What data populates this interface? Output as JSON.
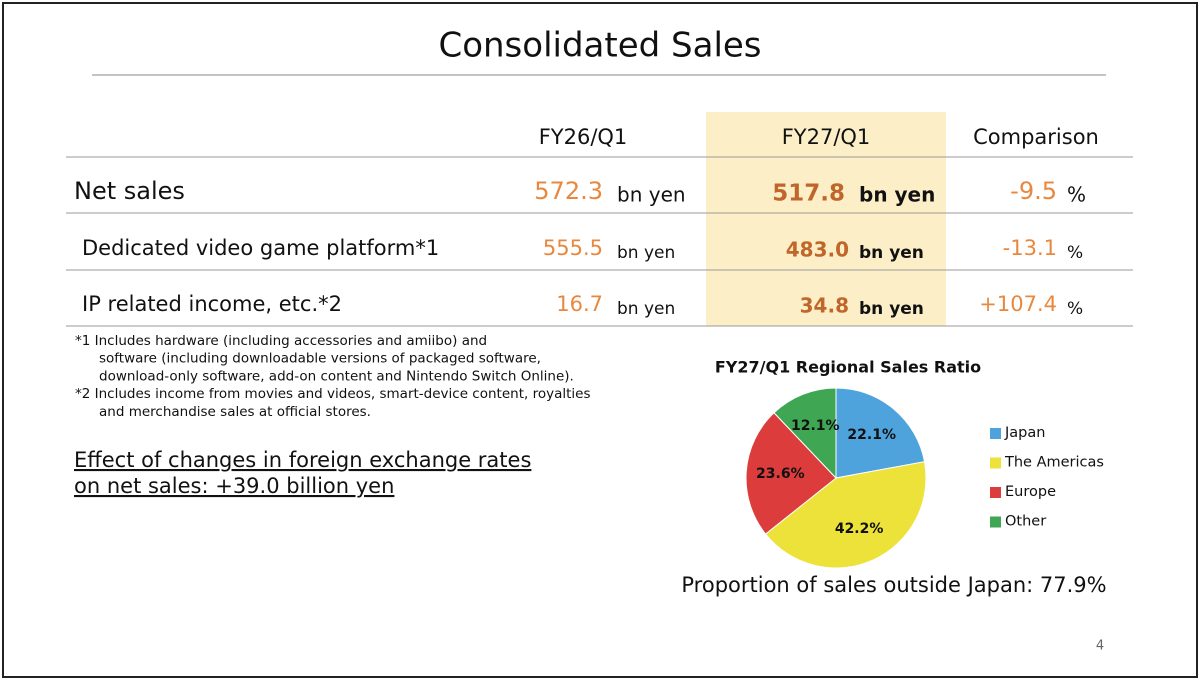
{
  "header": {
    "title": "Consolidated Sales"
  },
  "table": {
    "headers": [
      "FY26/Q1",
      "FY27/Q1",
      "Comparison"
    ],
    "rows": [
      {
        "label": "Net sales",
        "fy26": "572.3",
        "fy26_unit": "bn yen",
        "fy27": "517.8",
        "fy27_unit": "bn yen",
        "comparison": "-9.5",
        "comparison_unit": "%"
      },
      {
        "label": "Dedicated video game platform*1",
        "fy26": "555.5",
        "fy26_unit": "bn yen",
        "fy27": "483.0",
        "fy27_unit": "bn yen",
        "comparison": "-13.1",
        "comparison_unit": "%"
      },
      {
        "label": "IP related income, etc.*2",
        "fy26": "16.7",
        "fy26_unit": "bn yen",
        "fy27": "34.8",
        "fy27_unit": "bn yen",
        "comparison": "+107.4",
        "comparison_unit": "%"
      }
    ]
  },
  "footnotes": [
    [
      "*1 Includes hardware (including accessories and amiibo) and",
      "software (including downloadable versions of packaged software,",
      "download-only software, add-on content and Nintendo Switch Online)."
    ],
    [
      "*2 Includes income from movies and videos, smart-device content, royalties",
      "and merchandise sales at official stores."
    ]
  ],
  "fx_note": [
    "Effect of changes in foreign exchange rates",
    "on net sales: +39.0 billion yen"
  ],
  "chart_data": {
    "type": "pie",
    "title": "FY27/Q1 Regional Sales Ratio",
    "categories": [
      "Japan",
      "The Americas",
      "Europe",
      "Other"
    ],
    "values": [
      22.1,
      42.2,
      23.6,
      12.1
    ],
    "value_labels": [
      "22.1%",
      "42.2%",
      "23.6%",
      "12.1%"
    ],
    "colors": [
      "#4ea3dc",
      "#ece23a",
      "#dc3c3c",
      "#3fa654"
    ]
  },
  "proportion_note": "Proportion of sales outside Japan: 77.9%",
  "page_number": "4"
}
